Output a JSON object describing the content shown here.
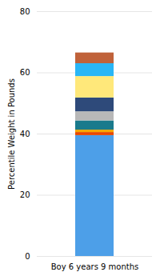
{
  "chart_data": {
    "type": "bar",
    "stacked": true,
    "categories": [
      "Boy 6 years 9 months"
    ],
    "series": [
      {
        "color": "#4d9fe8",
        "values": [
          39.5
        ]
      },
      {
        "color": "#e84800",
        "values": [
          1.0
        ]
      },
      {
        "color": "#f5a800",
        "values": [
          0.8
        ]
      },
      {
        "color": "#1a7a8c",
        "values": [
          3.0
        ]
      },
      {
        "color": "#b8b8b8",
        "values": [
          3.0
        ]
      },
      {
        "color": "#2e4a7a",
        "values": [
          4.5
        ]
      },
      {
        "color": "#ffe87a",
        "values": [
          7.0
        ]
      },
      {
        "color": "#29b6f6",
        "values": [
          4.2
        ]
      },
      {
        "color": "#c0623a",
        "values": [
          3.5
        ]
      }
    ],
    "ylabel": "Percentile Weight in Pounds",
    "ylim": [
      0,
      80
    ],
    "yticks": [
      0,
      20,
      40,
      60,
      80
    ],
    "grid": true
  }
}
